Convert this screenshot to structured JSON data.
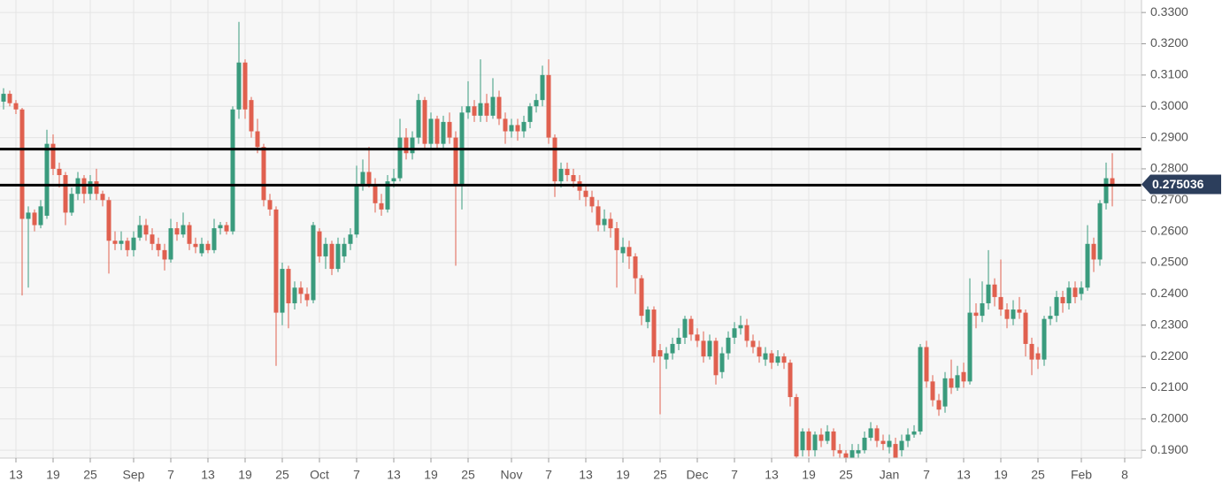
{
  "chart_data": {
    "type": "candlestick",
    "up_color": "#3a9b7d",
    "down_color": "#e0604f",
    "grid": true,
    "ylim": [
      0.1875,
      0.334
    ],
    "yticks": [
      {
        "value": 0.19,
        "label": "0.1900"
      },
      {
        "value": 0.2,
        "label": "0.2000"
      },
      {
        "value": 0.21,
        "label": "0.2100"
      },
      {
        "value": 0.22,
        "label": "0.2200"
      },
      {
        "value": 0.23,
        "label": "0.2300"
      },
      {
        "value": 0.24,
        "label": "0.2400"
      },
      {
        "value": 0.25,
        "label": "0.2500"
      },
      {
        "value": 0.26,
        "label": "0.2600"
      },
      {
        "value": 0.27,
        "label": "0.2700"
      },
      {
        "value": 0.28,
        "label": "0.2800"
      },
      {
        "value": 0.29,
        "label": "0.2900"
      },
      {
        "value": 0.3,
        "label": "0.3000"
      },
      {
        "value": 0.31,
        "label": "0.3100"
      },
      {
        "value": 0.32,
        "label": "0.3200"
      },
      {
        "value": 0.33,
        "label": "0.3300"
      }
    ],
    "hlines": [
      0.2863,
      0.2748
    ],
    "hline_color": "#000000",
    "last_price": 0.275036,
    "last_price_color": "#2c3e5c",
    "categories": [
      null,
      null,
      "13",
      null,
      null,
      null,
      null,
      null,
      "19",
      null,
      null,
      null,
      null,
      null,
      "25",
      null,
      null,
      null,
      null,
      null,
      null,
      "Sep",
      null,
      null,
      null,
      null,
      null,
      "7",
      null,
      null,
      null,
      null,
      null,
      "13",
      null,
      null,
      null,
      null,
      null,
      "19",
      null,
      null,
      null,
      null,
      null,
      "25",
      null,
      null,
      null,
      null,
      null,
      "Oct",
      null,
      null,
      null,
      null,
      null,
      "7",
      null,
      null,
      null,
      null,
      null,
      "13",
      null,
      null,
      null,
      null,
      null,
      "19",
      null,
      null,
      null,
      null,
      null,
      "25",
      null,
      null,
      null,
      null,
      null,
      null,
      "Nov",
      null,
      null,
      null,
      null,
      null,
      "7",
      null,
      null,
      null,
      null,
      null,
      "13",
      null,
      null,
      null,
      null,
      null,
      "19",
      null,
      null,
      null,
      null,
      null,
      "25",
      null,
      null,
      null,
      null,
      null,
      "Dec",
      null,
      null,
      null,
      null,
      null,
      "7",
      null,
      null,
      null,
      null,
      null,
      "13",
      null,
      null,
      null,
      null,
      null,
      "19",
      null,
      null,
      null,
      null,
      null,
      "25",
      null,
      null,
      null,
      null,
      null,
      null,
      "Jan",
      null,
      null,
      null,
      null,
      null,
      "7",
      null,
      null,
      null,
      null,
      null,
      "13",
      null,
      null,
      null,
      null,
      null,
      "19",
      null,
      null,
      null,
      null,
      null,
      "25",
      null,
      null,
      null,
      null,
      null,
      null,
      "Feb",
      null,
      null,
      null,
      null,
      null,
      null,
      "8"
    ],
    "ohlc": [
      [
        0.3015,
        0.3058,
        0.299,
        0.304
      ],
      [
        0.304,
        0.305,
        0.3,
        0.301
      ],
      [
        0.301,
        0.302,
        0.2975,
        0.299
      ],
      [
        0.299,
        0.2995,
        0.2395,
        0.264
      ],
      [
        0.264,
        0.268,
        0.242,
        0.266
      ],
      [
        0.266,
        0.267,
        0.26,
        0.262
      ],
      [
        0.262,
        0.27,
        0.261,
        0.268
      ],
      [
        0.265,
        0.2925,
        0.264,
        0.288
      ],
      [
        0.288,
        0.291,
        0.278,
        0.28
      ],
      [
        0.28,
        0.282,
        0.274,
        0.278
      ],
      [
        0.278,
        0.279,
        0.262,
        0.266
      ],
      [
        0.266,
        0.274,
        0.265,
        0.272
      ],
      [
        0.272,
        0.279,
        0.27,
        0.277
      ],
      [
        0.277,
        0.278,
        0.269,
        0.272
      ],
      [
        0.272,
        0.278,
        0.27,
        0.276
      ],
      [
        0.276,
        0.28,
        0.27,
        0.272
      ],
      [
        0.272,
        0.273,
        0.268,
        0.27
      ],
      [
        0.27,
        0.271,
        0.2465,
        0.257
      ],
      [
        0.257,
        0.26,
        0.254,
        0.256
      ],
      [
        0.256,
        0.26,
        0.254,
        0.257
      ],
      [
        0.257,
        0.258,
        0.252,
        0.254
      ],
      [
        0.254,
        0.26,
        0.252,
        0.258
      ],
      [
        0.258,
        0.265,
        0.257,
        0.262
      ],
      [
        0.262,
        0.264,
        0.257,
        0.259
      ],
      [
        0.259,
        0.261,
        0.254,
        0.256
      ],
      [
        0.256,
        0.258,
        0.252,
        0.254
      ],
      [
        0.254,
        0.256,
        0.2475,
        0.251
      ],
      [
        0.251,
        0.264,
        0.25,
        0.261
      ],
      [
        0.261,
        0.263,
        0.257,
        0.259
      ],
      [
        0.259,
        0.266,
        0.258,
        0.262
      ],
      [
        0.262,
        0.263,
        0.254,
        0.256
      ],
      [
        0.256,
        0.258,
        0.253,
        0.255
      ],
      [
        0.253,
        0.258,
        0.252,
        0.256
      ],
      [
        0.256,
        0.257,
        0.253,
        0.254
      ],
      [
        0.254,
        0.264,
        0.253,
        0.261
      ],
      [
        0.261,
        0.263,
        0.259,
        0.262
      ],
      [
        0.262,
        0.263,
        0.259,
        0.26
      ],
      [
        0.26,
        0.3,
        0.259,
        0.299
      ],
      [
        0.299,
        0.327,
        0.296,
        0.314
      ],
      [
        0.314,
        0.315,
        0.296,
        0.299
      ],
      [
        0.302,
        0.303,
        0.29,
        0.292
      ],
      [
        0.292,
        0.296,
        0.285,
        0.287
      ],
      [
        0.287,
        0.288,
        0.268,
        0.27
      ],
      [
        0.27,
        0.272,
        0.265,
        0.267
      ],
      [
        0.267,
        0.268,
        0.217,
        0.234
      ],
      [
        0.234,
        0.25,
        0.23,
        0.248
      ],
      [
        0.248,
        0.249,
        0.229,
        0.237
      ],
      [
        0.237,
        0.244,
        0.235,
        0.242
      ],
      [
        0.242,
        0.244,
        0.237,
        0.24
      ],
      [
        0.24,
        0.242,
        0.236,
        0.238
      ],
      [
        0.238,
        0.263,
        0.237,
        0.262
      ],
      [
        0.26,
        0.261,
        0.25,
        0.252
      ],
      [
        0.252,
        0.258,
        0.248,
        0.256
      ],
      [
        0.256,
        0.257,
        0.246,
        0.248
      ],
      [
        0.248,
        0.258,
        0.247,
        0.256
      ],
      [
        0.252,
        0.258,
        0.25,
        0.256
      ],
      [
        0.256,
        0.261,
        0.254,
        0.259
      ],
      [
        0.259,
        0.281,
        0.258,
        0.275
      ],
      [
        0.275,
        0.283,
        0.273,
        0.279
      ],
      [
        0.279,
        0.287,
        0.274,
        0.275
      ],
      [
        0.275,
        0.277,
        0.266,
        0.269
      ],
      [
        0.269,
        0.272,
        0.265,
        0.267
      ],
      [
        0.267,
        0.278,
        0.266,
        0.276
      ],
      [
        0.276,
        0.28,
        0.274,
        0.277
      ],
      [
        0.277,
        0.296,
        0.276,
        0.29
      ],
      [
        0.29,
        0.293,
        0.283,
        0.285
      ],
      [
        0.285,
        0.292,
        0.283,
        0.29
      ],
      [
        0.29,
        0.304,
        0.288,
        0.302
      ],
      [
        0.302,
        0.303,
        0.286,
        0.288
      ],
      [
        0.288,
        0.298,
        0.286,
        0.296
      ],
      [
        0.296,
        0.297,
        0.286,
        0.288
      ],
      [
        0.288,
        0.297,
        0.286,
        0.295
      ],
      [
        0.295,
        0.298,
        0.288,
        0.29
      ],
      [
        0.29,
        0.292,
        0.249,
        0.275
      ],
      [
        0.275,
        0.3,
        0.267,
        0.298
      ],
      [
        0.298,
        0.308,
        0.296,
        0.3
      ],
      [
        0.3,
        0.302,
        0.295,
        0.297
      ],
      [
        0.297,
        0.315,
        0.295,
        0.301
      ],
      [
        0.301,
        0.304,
        0.295,
        0.297
      ],
      [
        0.297,
        0.309,
        0.296,
        0.303
      ],
      [
        0.303,
        0.305,
        0.294,
        0.296
      ],
      [
        0.296,
        0.298,
        0.288,
        0.292
      ],
      [
        0.292,
        0.296,
        0.29,
        0.294
      ],
      [
        0.294,
        0.296,
        0.289,
        0.292
      ],
      [
        0.292,
        0.297,
        0.29,
        0.295
      ],
      [
        0.295,
        0.301,
        0.293,
        0.3
      ],
      [
        0.3,
        0.304,
        0.298,
        0.302
      ],
      [
        0.302,
        0.313,
        0.3,
        0.31
      ],
      [
        0.31,
        0.315,
        0.288,
        0.29
      ],
      [
        0.29,
        0.291,
        0.271,
        0.276
      ],
      [
        0.276,
        0.282,
        0.274,
        0.28
      ],
      [
        0.28,
        0.282,
        0.276,
        0.278
      ],
      [
        0.278,
        0.28,
        0.274,
        0.276
      ],
      [
        0.276,
        0.278,
        0.27,
        0.273
      ],
      [
        0.273,
        0.275,
        0.268,
        0.271
      ],
      [
        0.271,
        0.273,
        0.266,
        0.268
      ],
      [
        0.268,
        0.27,
        0.26,
        0.262
      ],
      [
        0.262,
        0.267,
        0.26,
        0.264
      ],
      [
        0.264,
        0.266,
        0.258,
        0.261
      ],
      [
        0.261,
        0.263,
        0.242,
        0.254
      ],
      [
        0.253,
        0.258,
        0.25,
        0.255
      ],
      [
        0.255,
        0.257,
        0.248,
        0.252
      ],
      [
        0.252,
        0.253,
        0.24,
        0.245
      ],
      [
        0.245,
        0.246,
        0.23,
        0.233
      ],
      [
        0.231,
        0.236,
        0.229,
        0.235
      ],
      [
        0.235,
        0.236,
        0.218,
        0.22
      ],
      [
        0.222,
        0.224,
        0.2015,
        0.22
      ],
      [
        0.219,
        0.223,
        0.216,
        0.221
      ],
      [
        0.221,
        0.226,
        0.219,
        0.224
      ],
      [
        0.224,
        0.229,
        0.222,
        0.226
      ],
      [
        0.226,
        0.233,
        0.224,
        0.232
      ],
      [
        0.232,
        0.233,
        0.225,
        0.227
      ],
      [
        0.227,
        0.229,
        0.223,
        0.225
      ],
      [
        0.225,
        0.228,
        0.218,
        0.22
      ],
      [
        0.22,
        0.227,
        0.219,
        0.225
      ],
      [
        0.225,
        0.226,
        0.211,
        0.214
      ],
      [
        0.215,
        0.223,
        0.213,
        0.221
      ],
      [
        0.221,
        0.228,
        0.219,
        0.226
      ],
      [
        0.226,
        0.231,
        0.224,
        0.229
      ],
      [
        0.229,
        0.233,
        0.227,
        0.23
      ],
      [
        0.23,
        0.232,
        0.223,
        0.225
      ],
      [
        0.225,
        0.227,
        0.221,
        0.223
      ],
      [
        0.223,
        0.225,
        0.218,
        0.22
      ],
      [
        0.219,
        0.223,
        0.217,
        0.221
      ],
      [
        0.221,
        0.222,
        0.216,
        0.218
      ],
      [
        0.218,
        0.222,
        0.217,
        0.22
      ],
      [
        0.22,
        0.221,
        0.216,
        0.218
      ],
      [
        0.218,
        0.219,
        0.204,
        0.207
      ],
      [
        0.207,
        0.208,
        0.185,
        0.188
      ],
      [
        0.19,
        0.197,
        0.188,
        0.196
      ],
      [
        0.196,
        0.197,
        0.188,
        0.19
      ],
      [
        0.19,
        0.196,
        0.188,
        0.195
      ],
      [
        0.195,
        0.197,
        0.191,
        0.193
      ],
      [
        0.193,
        0.198,
        0.192,
        0.196
      ],
      [
        0.196,
        0.197,
        0.188,
        0.19
      ],
      [
        0.19,
        0.192,
        0.187,
        0.189
      ],
      [
        0.189,
        0.19,
        0.185,
        0.187
      ],
      [
        0.187,
        0.192,
        0.186,
        0.19
      ],
      [
        0.189,
        0.192,
        0.187,
        0.19
      ],
      [
        0.19,
        0.196,
        0.189,
        0.194
      ],
      [
        0.194,
        0.199,
        0.193,
        0.197
      ],
      [
        0.197,
        0.198,
        0.191,
        0.193
      ],
      [
        0.193,
        0.195,
        0.19,
        0.192
      ],
      [
        0.191,
        0.195,
        0.189,
        0.193
      ],
      [
        0.192,
        0.194,
        0.184,
        0.186
      ],
      [
        0.19,
        0.195,
        0.188,
        0.193
      ],
      [
        0.193,
        0.197,
        0.191,
        0.195
      ],
      [
        0.195,
        0.198,
        0.194,
        0.196
      ],
      [
        0.196,
        0.224,
        0.195,
        0.223
      ],
      [
        0.223,
        0.225,
        0.21,
        0.212
      ],
      [
        0.212,
        0.214,
        0.204,
        0.206
      ],
      [
        0.206,
        0.208,
        0.201,
        0.203
      ],
      [
        0.204,
        0.215,
        0.202,
        0.213
      ],
      [
        0.213,
        0.219,
        0.208,
        0.21
      ],
      [
        0.21,
        0.217,
        0.209,
        0.214
      ],
      [
        0.215,
        0.218,
        0.21,
        0.212
      ],
      [
        0.212,
        0.245,
        0.211,
        0.234
      ],
      [
        0.234,
        0.237,
        0.229,
        0.233
      ],
      [
        0.233,
        0.244,
        0.231,
        0.237
      ],
      [
        0.237,
        0.254,
        0.235,
        0.243
      ],
      [
        0.243,
        0.245,
        0.236,
        0.239
      ],
      [
        0.239,
        0.251,
        0.233,
        0.235
      ],
      [
        0.235,
        0.237,
        0.229,
        0.232
      ],
      [
        0.232,
        0.238,
        0.23,
        0.235
      ],
      [
        0.235,
        0.239,
        0.232,
        0.234
      ],
      [
        0.234,
        0.235,
        0.22,
        0.224
      ],
      [
        0.224,
        0.226,
        0.214,
        0.219
      ],
      [
        0.221,
        0.223,
        0.216,
        0.219
      ],
      [
        0.219,
        0.233,
        0.217,
        0.232
      ],
      [
        0.232,
        0.236,
        0.23,
        0.233
      ],
      [
        0.233,
        0.241,
        0.231,
        0.239
      ],
      [
        0.239,
        0.241,
        0.234,
        0.237
      ],
      [
        0.237,
        0.244,
        0.235,
        0.242
      ],
      [
        0.242,
        0.244,
        0.237,
        0.239
      ],
      [
        0.24,
        0.244,
        0.238,
        0.242
      ],
      [
        0.242,
        0.262,
        0.241,
        0.256
      ],
      [
        0.256,
        0.258,
        0.247,
        0.251
      ],
      [
        0.251,
        0.27,
        0.249,
        0.269
      ],
      [
        0.269,
        0.282,
        0.267,
        0.277
      ],
      [
        0.277,
        0.285,
        0.268,
        0.275036
      ],
      null,
      null
    ]
  }
}
